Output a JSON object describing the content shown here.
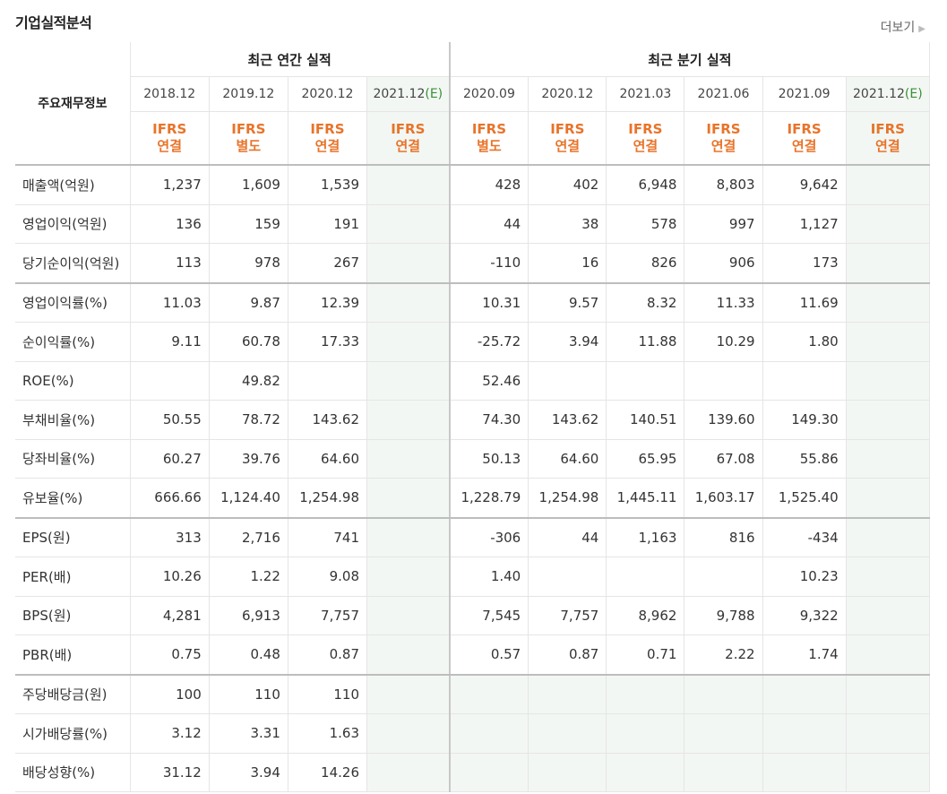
{
  "title": "기업실적분석",
  "more_label": "더보기",
  "header": {
    "label": "주요재무정보",
    "annual_group": "최근 연간 실적",
    "quarter_group": "최근 분기 실적",
    "annual_dates": [
      "2018.12",
      "2019.12",
      "2020.12",
      "2021.12"
    ],
    "annual_est_mark": "(E)",
    "quarter_dates": [
      "2020.09",
      "2020.12",
      "2021.03",
      "2021.06",
      "2021.09",
      "2021.12"
    ],
    "quarter_est_mark": "(E)",
    "annual_ifrs": [
      [
        "IFRS",
        "연결"
      ],
      [
        "IFRS",
        "별도"
      ],
      [
        "IFRS",
        "연결"
      ],
      [
        "IFRS",
        "연결"
      ]
    ],
    "quarter_ifrs": [
      [
        "IFRS",
        "별도"
      ],
      [
        "IFRS",
        "연결"
      ],
      [
        "IFRS",
        "연결"
      ],
      [
        "IFRS",
        "연결"
      ],
      [
        "IFRS",
        "연결"
      ],
      [
        "IFRS",
        "연결"
      ]
    ]
  },
  "rows": [
    {
      "label": "매출액(억원)",
      "annual": [
        "1,237",
        "1,609",
        "1,539",
        ""
      ],
      "quarter": [
        "428",
        "402",
        "6,948",
        "8,803",
        "9,642",
        ""
      ]
    },
    {
      "label": "영업이익(억원)",
      "annual": [
        "136",
        "159",
        "191",
        ""
      ],
      "quarter": [
        "44",
        "38",
        "578",
        "997",
        "1,127",
        ""
      ]
    },
    {
      "label": "당기순이익(억원)",
      "annual": [
        "113",
        "978",
        "267",
        ""
      ],
      "quarter": [
        "-110",
        "16",
        "826",
        "906",
        "173",
        ""
      ]
    },
    {
      "label": "영업이익률(%)",
      "annual": [
        "11.03",
        "9.87",
        "12.39",
        ""
      ],
      "quarter": [
        "10.31",
        "9.57",
        "8.32",
        "11.33",
        "11.69",
        ""
      ]
    },
    {
      "label": "순이익률(%)",
      "annual": [
        "9.11",
        "60.78",
        "17.33",
        ""
      ],
      "quarter": [
        "-25.72",
        "3.94",
        "11.88",
        "10.29",
        "1.80",
        ""
      ]
    },
    {
      "label": "ROE(%)",
      "annual": [
        "",
        "49.82",
        "",
        ""
      ],
      "quarter": [
        "52.46",
        "",
        "",
        "",
        "",
        ""
      ]
    },
    {
      "label": "부채비율(%)",
      "annual": [
        "50.55",
        "78.72",
        "143.62",
        ""
      ],
      "quarter": [
        "74.30",
        "143.62",
        "140.51",
        "139.60",
        "149.30",
        ""
      ]
    },
    {
      "label": "당좌비율(%)",
      "annual": [
        "60.27",
        "39.76",
        "64.60",
        ""
      ],
      "quarter": [
        "50.13",
        "64.60",
        "65.95",
        "67.08",
        "55.86",
        ""
      ]
    },
    {
      "label": "유보율(%)",
      "annual": [
        "666.66",
        "1,124.40",
        "1,254.98",
        ""
      ],
      "quarter": [
        "1,228.79",
        "1,254.98",
        "1,445.11",
        "1,603.17",
        "1,525.40",
        ""
      ]
    },
    {
      "label": "EPS(원)",
      "annual": [
        "313",
        "2,716",
        "741",
        ""
      ],
      "quarter": [
        "-306",
        "44",
        "1,163",
        "816",
        "-434",
        ""
      ]
    },
    {
      "label": "PER(배)",
      "annual": [
        "10.26",
        "1.22",
        "9.08",
        ""
      ],
      "quarter": [
        "1.40",
        "",
        "",
        "",
        "10.23",
        ""
      ]
    },
    {
      "label": "BPS(원)",
      "annual": [
        "4,281",
        "6,913",
        "7,757",
        ""
      ],
      "quarter": [
        "7,545",
        "7,757",
        "8,962",
        "9,788",
        "9,322",
        ""
      ]
    },
    {
      "label": "PBR(배)",
      "annual": [
        "0.75",
        "0.48",
        "0.87",
        ""
      ],
      "quarter": [
        "0.57",
        "0.87",
        "0.71",
        "2.22",
        "1.74",
        ""
      ]
    },
    {
      "label": "주당배당금(원)",
      "annual": [
        "100",
        "110",
        "110",
        ""
      ],
      "quarter": [
        "",
        "",
        "",
        "",
        "",
        ""
      ]
    },
    {
      "label": "시가배당률(%)",
      "annual": [
        "3.12",
        "3.31",
        "1.63",
        ""
      ],
      "quarter": [
        "",
        "",
        "",
        "",
        "",
        ""
      ]
    },
    {
      "label": "배당성향(%)",
      "annual": [
        "31.12",
        "3.94",
        "14.26",
        ""
      ],
      "quarter": [
        "",
        "",
        "",
        "",
        "",
        ""
      ]
    }
  ],
  "group_ends": [
    2,
    8,
    12
  ],
  "colors": {
    "ifrs": "#e8742a",
    "negative": "#d0021b",
    "estimate_bg": "#f3f7f3",
    "estimate_mark": "#3a8f3a"
  }
}
